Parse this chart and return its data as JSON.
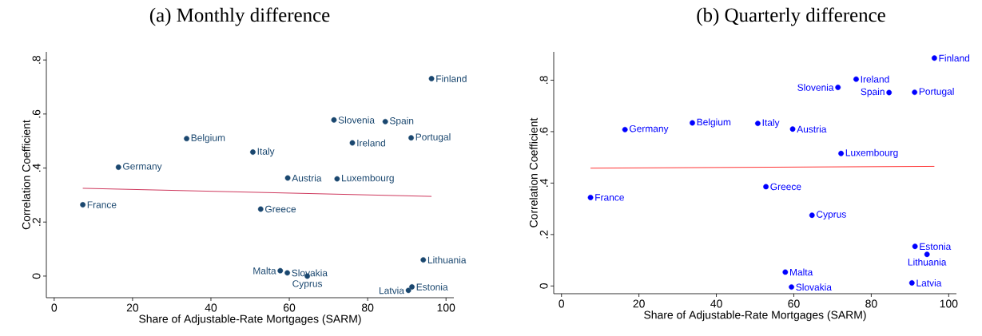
{
  "chart_data": [
    {
      "type": "scatter",
      "title": "(a) Monthly difference",
      "xlabel": "Share of Adjustable-Rate Mortgages (SARM)",
      "ylabel": "Correlation Coefficient",
      "xlim": [
        -2,
        102
      ],
      "ylim": [
        -0.08,
        0.83
      ],
      "xticks": [
        0,
        20,
        40,
        60,
        80,
        100
      ],
      "yticks": [
        0,
        {
          "value": 0.2,
          "label": ".2"
        },
        {
          "value": 0.4,
          "label": ".4"
        },
        {
          "value": 0.6,
          "label": ".6"
        },
        {
          "value": 0.8,
          "label": ".8"
        }
      ],
      "series": [
        {
          "color": "#1a476f",
          "marker": "circle",
          "x": [
            7.3,
            16.4,
            33.8,
            50.7,
            52.7,
            57.7,
            59.5,
            59.6,
            64.6,
            71.4,
            72.2,
            76.1,
            84.5,
            90.4,
            91.3,
            91.1,
            94.2,
            96.3
          ],
          "values": [
            0.264,
            0.403,
            0.509,
            0.459,
            0.248,
            0.02,
            0.012,
            0.363,
            0.0,
            0.578,
            0.36,
            0.493,
            0.572,
            -0.053,
            -0.04,
            0.512,
            0.06,
            0.731
          ]
        },
        {
          "type": "line",
          "color": "#c10534",
          "marker": "none",
          "x": [
            7.3,
            96.3
          ],
          "values": [
            0.325,
            0.295
          ]
        }
      ],
      "annotations": [
        {
          "text": "France",
          "x": 7.3,
          "y": 0.264
        },
        {
          "text": "Germany",
          "x": 16.4,
          "y": 0.403
        },
        {
          "text": "Belgium",
          "x": 33.8,
          "y": 0.509
        },
        {
          "text": "Italy",
          "x": 50.7,
          "y": 0.459
        },
        {
          "text": "Greece",
          "x": 52.7,
          "y": 0.248
        },
        {
          "text": "Malta",
          "x": 57.7,
          "y": 0.02
        },
        {
          "text": "Slovakia",
          "x": 59.5,
          "y": 0.012
        },
        {
          "text": "Austria",
          "x": 59.6,
          "y": 0.363
        },
        {
          "text": "Cyprus",
          "x": 64.6,
          "y": 0.0
        },
        {
          "text": "Slovenia",
          "x": 71.4,
          "y": 0.578
        },
        {
          "text": "Luxembourg",
          "x": 72.2,
          "y": 0.36
        },
        {
          "text": "Ireland",
          "x": 76.1,
          "y": 0.493
        },
        {
          "text": "Spain",
          "x": 84.5,
          "y": 0.572
        },
        {
          "text": "Latvia",
          "x": 90.4,
          "y": -0.053
        },
        {
          "text": "Estonia",
          "x": 91.3,
          "y": -0.04
        },
        {
          "text": "Portugal",
          "x": 91.1,
          "y": 0.512
        },
        {
          "text": "Lithuania",
          "x": 94.2,
          "y": 0.06
        },
        {
          "text": "Finland",
          "x": 96.3,
          "y": 0.731
        }
      ]
    },
    {
      "type": "scatter",
      "title": "(b) Quarterly difference",
      "xlabel": "Share of Adjustable-Rate Mortgages (SARM)",
      "ylabel": "Correlation Coefficient",
      "xlim": [
        -2,
        102
      ],
      "ylim": [
        -0.03,
        0.91
      ],
      "xticks": [
        0,
        20,
        40,
        60,
        80,
        100
      ],
      "yticks": [
        0,
        {
          "value": 0.2,
          "label": ".2"
        },
        {
          "value": 0.4,
          "label": ".4"
        },
        {
          "value": 0.6,
          "label": ".6"
        },
        {
          "value": 0.8,
          "label": ".8"
        }
      ],
      "series": [
        {
          "color": "#0000ff",
          "marker": "circle",
          "x": [
            7.5,
            16.4,
            33.8,
            50.7,
            52.8,
            57.8,
            59.4,
            59.7,
            64.7,
            71.4,
            72.2,
            76.1,
            84.6,
            90.5,
            91.2,
            91.3,
            94.4,
            96.3
          ],
          "values": [
            0.344,
            0.608,
            0.634,
            0.632,
            0.386,
            0.054,
            -0.004,
            0.61,
            0.275,
            0.772,
            0.515,
            0.804,
            0.752,
            0.012,
            0.753,
            0.154,
            0.123,
            0.886
          ]
        },
        {
          "type": "line",
          "color": "#ff0000",
          "marker": "none",
          "x": [
            7.5,
            96.3
          ],
          "values": [
            0.458,
            0.465
          ]
        }
      ],
      "annotations": [
        {
          "text": "France",
          "x": 7.5,
          "y": 0.344
        },
        {
          "text": "Germany",
          "x": 16.4,
          "y": 0.608
        },
        {
          "text": "Belgium",
          "x": 33.8,
          "y": 0.634
        },
        {
          "text": "Italy",
          "x": 50.7,
          "y": 0.632
        },
        {
          "text": "Greece",
          "x": 52.8,
          "y": 0.386
        },
        {
          "text": "Malta",
          "x": 57.8,
          "y": 0.054
        },
        {
          "text": "Slovakia",
          "x": 59.4,
          "y": -0.004
        },
        {
          "text": "Austria",
          "x": 59.7,
          "y": 0.61
        },
        {
          "text": "Cyprus",
          "x": 64.7,
          "y": 0.275
        },
        {
          "text": "Slovenia",
          "x": 71.4,
          "y": 0.772
        },
        {
          "text": "Luxembourg",
          "x": 72.2,
          "y": 0.515
        },
        {
          "text": "Ireland",
          "x": 76.1,
          "y": 0.804
        },
        {
          "text": "Spain",
          "x": 84.6,
          "y": 0.752
        },
        {
          "text": "Latvia",
          "x": 90.5,
          "y": 0.012
        },
        {
          "text": "Portugal",
          "x": 91.2,
          "y": 0.753
        },
        {
          "text": "Estonia",
          "x": 91.3,
          "y": 0.154
        },
        {
          "text": "Lithuania",
          "x": 94.4,
          "y": 0.123
        },
        {
          "text": "Finland",
          "x": 96.3,
          "y": 0.886
        }
      ]
    }
  ]
}
